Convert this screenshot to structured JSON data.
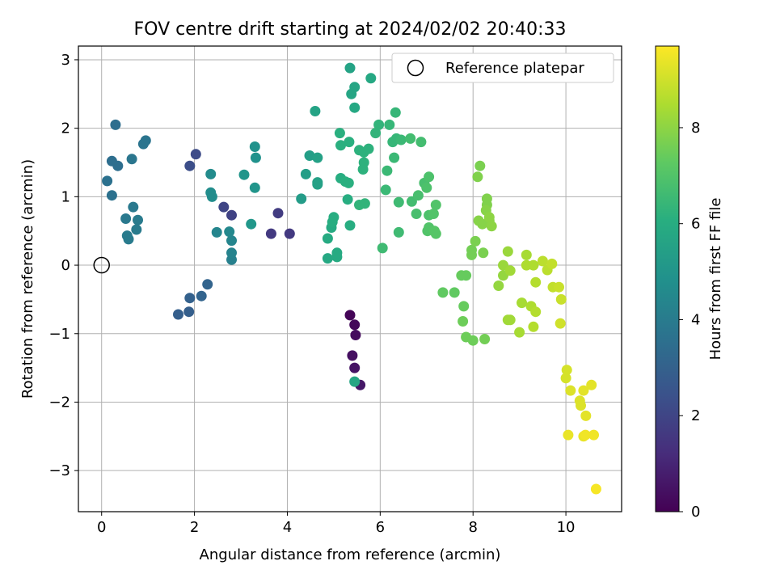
{
  "chart_data": {
    "type": "scatter",
    "title": "FOV centre drift starting at 2024/02/02 20:40:33",
    "xlabel": "Angular distance from reference (arcmin)",
    "ylabel": "Rotation from reference (arcmin)",
    "xlim": [
      -0.5,
      11.2
    ],
    "ylim": [
      -3.6,
      3.2
    ],
    "xticks": [
      0,
      2,
      4,
      6,
      8,
      10
    ],
    "yticks": [
      -3,
      -2,
      -1,
      0,
      1,
      2,
      3
    ],
    "xtick_labels": [
      "0",
      "2",
      "4",
      "6",
      "8",
      "10"
    ],
    "ytick_labels": [
      "−3",
      "−2",
      "−1",
      "0",
      "1",
      "2",
      "3"
    ],
    "grid": true,
    "legend": {
      "position": "top-right",
      "entries": [
        "Reference platepar"
      ]
    },
    "reference_point": {
      "x": 0,
      "y": 0,
      "label": "Reference platepar"
    },
    "colorbar": {
      "label": "Hours from first FF file",
      "range": [
        0,
        9.7
      ],
      "ticks": [
        0,
        2,
        4,
        6,
        8
      ],
      "tick_labels": [
        "0",
        "2",
        "4",
        "6",
        "8"
      ],
      "colormap": "viridis"
    },
    "points": [
      [
        5.35,
        -0.73,
        0.1
      ],
      [
        5.45,
        -0.87,
        0.2
      ],
      [
        5.47,
        -1.02,
        0.3
      ],
      [
        5.4,
        -1.32,
        0.4
      ],
      [
        5.45,
        -1.5,
        0.5
      ],
      [
        5.57,
        -1.75,
        0.6
      ],
      [
        3.65,
        0.46,
        1.6
      ],
      [
        3.8,
        0.76,
        1.7
      ],
      [
        4.05,
        0.46,
        1.6
      ],
      [
        2.8,
        0.73,
        1.9
      ],
      [
        2.63,
        0.85,
        2.0
      ],
      [
        2.03,
        1.62,
        2.2
      ],
      [
        1.9,
        1.45,
        2.3
      ],
      [
        1.65,
        -0.72,
        2.9
      ],
      [
        1.88,
        -0.68,
        2.9
      ],
      [
        1.9,
        -0.48,
        3.0
      ],
      [
        2.15,
        -0.45,
        3.1
      ],
      [
        2.28,
        -0.28,
        3.1
      ],
      [
        0.3,
        2.05,
        3.5
      ],
      [
        0.22,
        1.52,
        3.5
      ],
      [
        0.35,
        1.45,
        3.5
      ],
      [
        0.12,
        1.23,
        3.6
      ],
      [
        0.22,
        1.02,
        3.6
      ],
      [
        0.95,
        1.82,
        3.7
      ],
      [
        0.9,
        1.77,
        3.7
      ],
      [
        0.65,
        1.55,
        3.8
      ],
      [
        0.68,
        0.85,
        3.9
      ],
      [
        0.52,
        0.68,
        3.9
      ],
      [
        0.78,
        0.66,
        4.0
      ],
      [
        0.75,
        0.52,
        4.0
      ],
      [
        0.55,
        0.43,
        4.0
      ],
      [
        0.58,
        0.38,
        4.0
      ],
      [
        2.8,
        0.08,
        4.2
      ],
      [
        2.8,
        0.18,
        4.3
      ],
      [
        2.8,
        0.36,
        4.4
      ],
      [
        2.48,
        0.48,
        4.4
      ],
      [
        2.75,
        0.49,
        4.5
      ],
      [
        2.35,
        1.33,
        4.6
      ],
      [
        2.35,
        1.06,
        4.7
      ],
      [
        2.38,
        1.0,
        4.7
      ],
      [
        3.3,
        1.73,
        4.9
      ],
      [
        3.32,
        1.57,
        4.9
      ],
      [
        3.07,
        1.32,
        5.0
      ],
      [
        3.3,
        1.13,
        5.0
      ],
      [
        3.22,
        0.6,
        5.1
      ],
      [
        4.3,
        0.97,
        5.3
      ],
      [
        4.4,
        1.33,
        5.4
      ],
      [
        4.48,
        1.6,
        5.4
      ],
      [
        4.65,
        1.57,
        5.5
      ],
      [
        4.65,
        1.18,
        5.5
      ],
      [
        4.65,
        1.21,
        5.5
      ],
      [
        4.6,
        2.25,
        5.6
      ],
      [
        5.35,
        2.88,
        5.6
      ],
      [
        5.45,
        2.6,
        5.7
      ],
      [
        5.38,
        2.5,
        5.7
      ],
      [
        5.45,
        -1.7,
        5.7
      ],
      [
        5.8,
        2.73,
        5.8
      ],
      [
        5.45,
        2.3,
        5.8
      ],
      [
        4.87,
        0.1,
        5.8
      ],
      [
        5.07,
        0.12,
        5.9
      ],
      [
        5.07,
        0.18,
        5.9
      ],
      [
        4.87,
        0.39,
        5.9
      ],
      [
        4.95,
        0.55,
        5.9
      ],
      [
        4.97,
        0.63,
        6.0
      ],
      [
        5.0,
        0.7,
        6.0
      ],
      [
        5.35,
        0.58,
        6.0
      ],
      [
        5.3,
        0.96,
        6.0
      ],
      [
        5.15,
        1.27,
        6.0
      ],
      [
        5.25,
        1.22,
        6.1
      ],
      [
        5.32,
        1.2,
        6.1
      ],
      [
        5.13,
        1.93,
        6.1
      ],
      [
        5.15,
        1.75,
        6.1
      ],
      [
        5.33,
        1.8,
        6.1
      ],
      [
        5.55,
        1.68,
        6.2
      ],
      [
        5.65,
        1.65,
        6.2
      ],
      [
        5.75,
        1.7,
        6.2
      ],
      [
        5.65,
        1.5,
        6.2
      ],
      [
        5.63,
        1.4,
        6.2
      ],
      [
        5.55,
        0.88,
        6.3
      ],
      [
        5.67,
        0.9,
        6.3
      ],
      [
        5.9,
        1.93,
        6.3
      ],
      [
        5.97,
        2.05,
        6.3
      ],
      [
        6.2,
        2.05,
        6.4
      ],
      [
        6.33,
        2.23,
        6.4
      ],
      [
        6.27,
        1.8,
        6.4
      ],
      [
        6.35,
        1.85,
        6.4
      ],
      [
        6.45,
        1.83,
        6.5
      ],
      [
        6.3,
        1.57,
        6.5
      ],
      [
        6.15,
        1.38,
        6.5
      ],
      [
        6.12,
        1.1,
        6.5
      ],
      [
        6.05,
        0.25,
        6.6
      ],
      [
        6.4,
        0.92,
        6.6
      ],
      [
        6.4,
        0.48,
        6.6
      ],
      [
        6.68,
        0.93,
        6.7
      ],
      [
        6.65,
        1.85,
        6.7
      ],
      [
        6.88,
        1.8,
        6.7
      ],
      [
        6.82,
        1.02,
        6.8
      ],
      [
        6.78,
        0.75,
        6.8
      ],
      [
        6.95,
        1.2,
        6.8
      ],
      [
        7.05,
        1.29,
        6.9
      ],
      [
        7.0,
        1.13,
        6.9
      ],
      [
        7.05,
        0.73,
        6.9
      ],
      [
        7.2,
        0.88,
        7.0
      ],
      [
        7.15,
        0.75,
        7.0
      ],
      [
        7.02,
        0.5,
        7.0
      ],
      [
        7.05,
        0.55,
        7.0
      ],
      [
        7.17,
        0.5,
        7.1
      ],
      [
        7.2,
        0.46,
        7.1
      ],
      [
        7.35,
        -0.4,
        7.3
      ],
      [
        7.6,
        -0.4,
        7.3
      ],
      [
        7.75,
        -0.15,
        7.4
      ],
      [
        7.85,
        -0.15,
        7.4
      ],
      [
        7.8,
        -0.6,
        7.4
      ],
      [
        7.78,
        -0.82,
        7.5
      ],
      [
        7.85,
        -1.05,
        7.5
      ],
      [
        8.0,
        -1.1,
        7.5
      ],
      [
        8.25,
        -1.08,
        7.6
      ],
      [
        7.97,
        0.15,
        7.6
      ],
      [
        7.97,
        0.22,
        7.6
      ],
      [
        8.05,
        0.35,
        7.7
      ],
      [
        8.22,
        0.18,
        7.7
      ],
      [
        8.15,
        1.45,
        7.7
      ],
      [
        8.1,
        1.29,
        7.8
      ],
      [
        8.3,
        0.97,
        7.8
      ],
      [
        8.3,
        0.88,
        7.8
      ],
      [
        8.28,
        0.8,
        7.9
      ],
      [
        8.12,
        0.65,
        7.9
      ],
      [
        8.2,
        0.6,
        7.9
      ],
      [
        8.35,
        0.65,
        7.9
      ],
      [
        8.35,
        0.7,
        8.0
      ],
      [
        8.4,
        0.57,
        8.0
      ],
      [
        8.55,
        -0.3,
        8.1
      ],
      [
        8.65,
        -0.15,
        8.1
      ],
      [
        8.65,
        0.0,
        8.2
      ],
      [
        8.75,
        0.2,
        8.2
      ],
      [
        8.8,
        -0.08,
        8.3
      ],
      [
        8.75,
        -0.8,
        8.3
      ],
      [
        8.8,
        -0.8,
        8.3
      ],
      [
        9.0,
        -0.98,
        8.4
      ],
      [
        9.05,
        -0.55,
        8.4
      ],
      [
        9.15,
        0.15,
        8.4
      ],
      [
        9.15,
        0.0,
        8.5
      ],
      [
        9.3,
        0.0,
        8.5
      ],
      [
        9.25,
        -0.6,
        8.5
      ],
      [
        9.35,
        -0.68,
        8.6
      ],
      [
        9.35,
        -0.25,
        8.6
      ],
      [
        9.3,
        -0.9,
        8.6
      ],
      [
        9.5,
        0.06,
        8.7
      ],
      [
        9.6,
        -0.07,
        8.7
      ],
      [
        9.7,
        0.02,
        8.8
      ],
      [
        9.72,
        -0.32,
        8.8
      ],
      [
        9.85,
        -0.32,
        8.9
      ],
      [
        9.9,
        -0.5,
        8.9
      ],
      [
        9.88,
        -0.85,
        9.0
      ],
      [
        10.0,
        -1.65,
        9.1
      ],
      [
        10.02,
        -1.53,
        9.1
      ],
      [
        10.1,
        -1.83,
        9.2
      ],
      [
        10.3,
        -1.98,
        9.2
      ],
      [
        10.32,
        -2.05,
        9.2
      ],
      [
        10.38,
        -1.83,
        9.3
      ],
      [
        10.43,
        -2.2,
        9.3
      ],
      [
        10.55,
        -1.75,
        9.3
      ],
      [
        10.05,
        -2.48,
        9.4
      ],
      [
        10.38,
        -2.5,
        9.4
      ],
      [
        10.42,
        -2.48,
        9.5
      ],
      [
        10.6,
        -2.48,
        9.5
      ],
      [
        10.65,
        -3.27,
        9.6
      ]
    ]
  }
}
